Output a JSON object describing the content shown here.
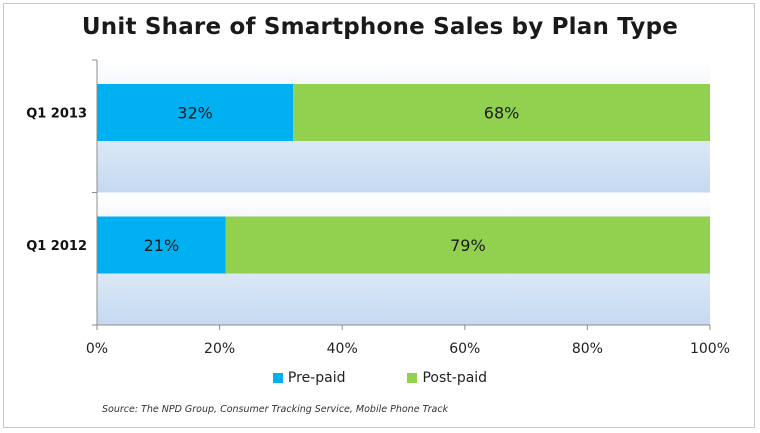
{
  "chart_data": {
    "type": "bar",
    "orientation": "horizontal",
    "stacked": true,
    "title": "Unit Share of Smartphone Sales by Plan Type",
    "categories": [
      "Q1 2013",
      "Q1 2012"
    ],
    "series": [
      {
        "name": "Pre-paid",
        "values": [
          32,
          21
        ],
        "labels": [
          "32%",
          "21%"
        ],
        "color": "#00b0f0"
      },
      {
        "name": "Post-paid",
        "values": [
          68,
          79
        ],
        "labels": [
          "68%",
          "79%"
        ],
        "color": "#92d050"
      }
    ],
    "xlim": [
      0,
      100
    ],
    "x_ticks": [
      0,
      20,
      40,
      60,
      80,
      100
    ],
    "x_tick_labels": [
      "0%",
      "20%",
      "40%",
      "60%",
      "80%",
      "100%"
    ],
    "legend_position": "bottom",
    "plot_background_color": "#c5d9f1"
  },
  "legend": {
    "prepaid_label": "Pre-paid",
    "postpaid_label": "Post-paid"
  },
  "source": "Source: The NPD Group, Consumer Tracking Service, Mobile Phone Track"
}
